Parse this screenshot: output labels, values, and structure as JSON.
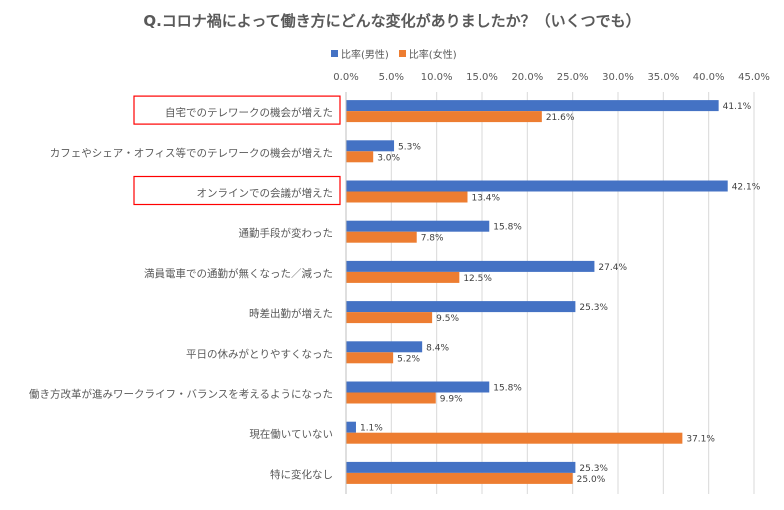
{
  "chart_data": {
    "type": "bar",
    "orientation": "horizontal",
    "title": "Q.コロナ禍によって働き方にどんな変化がありましたか？（いくつでも）",
    "categories": [
      "自宅でのテレワークの機会が増えた",
      "カフェやシェア・オフィス等でのテレワークの機会が増えた",
      "オンラインでの会議が増えた",
      "通勤手段が変わった",
      "満員電車での通勤が無くなった／減った",
      "時差出勤が増えた",
      "平日の休みがとりやすくなった",
      "働き方改革が進みワークライフ・バランスを考えるようになった",
      "現在働いていない",
      "特に変化なし"
    ],
    "highlighted_categories": [
      0,
      2
    ],
    "series": [
      {
        "name": "比率(男性)",
        "color": "#4472C4",
        "values": [
          41.1,
          5.3,
          42.1,
          15.8,
          27.4,
          25.3,
          8.4,
          15.8,
          1.1,
          25.3
        ]
      },
      {
        "name": "比率(女性)",
        "color": "#ED7D31",
        "values": [
          21.6,
          3.0,
          13.4,
          7.8,
          12.5,
          9.5,
          5.2,
          9.9,
          37.1,
          25.0
        ]
      }
    ],
    "xlim": [
      0,
      45
    ],
    "xticks": [
      "0.0%",
      "5.0%",
      "10.0%",
      "15.0%",
      "20.0%",
      "25.0%",
      "30.0%",
      "35.0%",
      "40.0%",
      "45.0%"
    ],
    "tick_axis_position": "top",
    "value_format": "percent-1dp",
    "grid": true,
    "legend_position": "top"
  }
}
